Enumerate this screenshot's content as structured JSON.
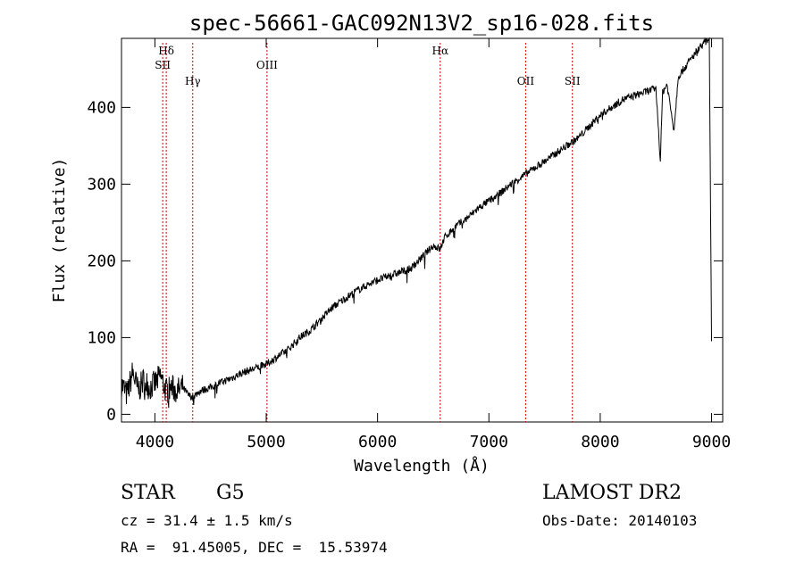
{
  "chart_data": {
    "type": "line",
    "title": "spec-56661-GAC092N13V2_sp16-028.fits",
    "xlabel": "Wavelength (Å)",
    "ylabel": "Flux (relative)",
    "xlim": [
      3700,
      9100
    ],
    "ylim": [
      -10,
      490
    ],
    "x_ticks": [
      4000,
      5000,
      6000,
      7000,
      8000,
      9000
    ],
    "y_ticks": [
      0,
      100,
      200,
      300,
      400
    ],
    "grid": false,
    "series": [
      {
        "x": [
          3700,
          3750,
          3800,
          3850,
          3900,
          3950,
          4000,
          4050,
          4100,
          4150,
          4200,
          4250,
          4300,
          4340,
          4400,
          4500,
          4600,
          4700,
          4800,
          4900,
          5000,
          5100,
          5200,
          5300,
          5400,
          5500,
          5600,
          5700,
          5800,
          5900,
          6000,
          6100,
          6200,
          6300,
          6400,
          6500,
          6563,
          6600,
          6700,
          6800,
          6900,
          7000,
          7100,
          7200,
          7300,
          7400,
          7500,
          7600,
          7700,
          7800,
          7900,
          8000,
          8100,
          8200,
          8300,
          8400,
          8500,
          8540,
          8560,
          8600,
          8662,
          8700,
          8800,
          8900,
          8980,
          9000
        ],
        "y": [
          40,
          25,
          55,
          30,
          45,
          35,
          40,
          50,
          30,
          35,
          30,
          35,
          25,
          22,
          30,
          35,
          42,
          48,
          55,
          60,
          65,
          75,
          85,
          100,
          110,
          125,
          140,
          150,
          160,
          168,
          175,
          180,
          185,
          190,
          205,
          220,
          215,
          230,
          245,
          255,
          268,
          278,
          288,
          300,
          310,
          320,
          330,
          340,
          350,
          360,
          375,
          390,
          400,
          410,
          415,
          420,
          425,
          330,
          420,
          430,
          370,
          440,
          460,
          480,
          490,
          100
        ]
      }
    ],
    "lines": [
      {
        "label": "Hδ",
        "x": 4102,
        "row": 1
      },
      {
        "label": "SII",
        "x": 4070,
        "row": 2
      },
      {
        "label": "Hγ",
        "x": 4340,
        "row": 3
      },
      {
        "label": "OIII",
        "x": 5007,
        "row": 2
      },
      {
        "label": "Hα",
        "x": 6563,
        "row": 1
      },
      {
        "label": "OII",
        "x": 7330,
        "row": 3
      },
      {
        "label": "SII",
        "x": 7750,
        "row": 3
      }
    ],
    "line_color": "#cc0000"
  },
  "info": {
    "object_class": "STAR",
    "subclass": "G5",
    "survey": "LAMOST DR2",
    "cz": "cz = 31.4 ± 1.5 km/s",
    "obs_date": "Obs-Date: 20140103",
    "coords": "RA =  91.45005, DEC =  15.53974"
  }
}
